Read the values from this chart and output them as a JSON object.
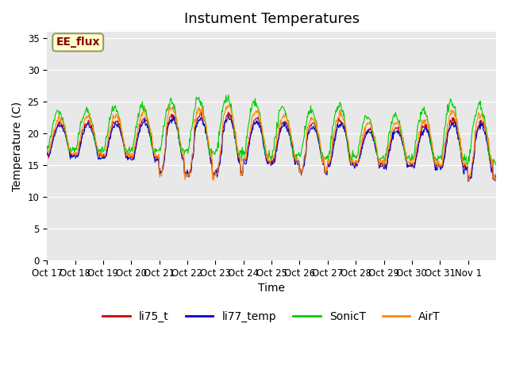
{
  "title": "Instument Temperatures",
  "ylabel": "Temperature (C)",
  "xlabel": "Time",
  "yticks": [
    0,
    5,
    10,
    15,
    20,
    25,
    30,
    35
  ],
  "ylim": [
    0,
    36
  ],
  "background_color": "#ffffff",
  "plot_bg_color": "#e8e8e8",
  "annotation_text": "EE_flux",
  "annotation_color": "#8b0000",
  "annotation_bg": "#ffffcc",
  "annotation_border": "#999966",
  "series_colors": {
    "li75_t": "#cc0000",
    "li77_temp": "#0000cc",
    "SonicT": "#00cc00",
    "AirT": "#ff8800"
  },
  "legend_labels": [
    "li75_t",
    "li77_temp",
    "SonicT",
    "AirT"
  ],
  "xtick_labels": [
    "Oct 17",
    "Oct 18",
    "Oct 19",
    "Oct 20",
    "Oct 21",
    "Oct 22",
    "Oct 23",
    "Oct 24",
    "Oct 25",
    "Oct 26",
    "Oct 27",
    "Oct 28",
    "Oct 29",
    "Oct 30",
    "Oct 31",
    "Nov 1"
  ],
  "n_days": 16,
  "points_per_day": 48,
  "title_fontsize": 13,
  "label_fontsize": 10,
  "tick_fontsize": 8.5,
  "legend_fontsize": 10
}
